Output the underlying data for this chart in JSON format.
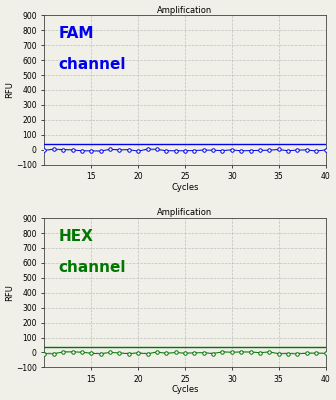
{
  "title": "Amplification",
  "xlabel": "Cycles",
  "ylabel": "RFU",
  "xlim": [
    10,
    40
  ],
  "ylim": [
    -100,
    900
  ],
  "yticks": [
    -100,
    0,
    100,
    200,
    300,
    400,
    500,
    600,
    700,
    800,
    900
  ],
  "xticks": [
    15,
    20,
    25,
    30,
    35,
    40
  ],
  "fam_color": "#0000EE",
  "hex_color": "#007700",
  "fam_label_line1": "FAM",
  "fam_label_line2": "channel",
  "hex_label_line1": "HEX",
  "hex_label_line2": "channel",
  "threshold_fam_y": 38.0,
  "threshold_hex_y": 38.0,
  "background_color": "#f0f0e8",
  "grid_color": "#bbbbbb",
  "cycles_start": 10,
  "cycles_end": 40,
  "title_fontsize": 6,
  "axis_label_fontsize": 6,
  "tick_fontsize": 5.5,
  "channel_label_fontsize": 11
}
